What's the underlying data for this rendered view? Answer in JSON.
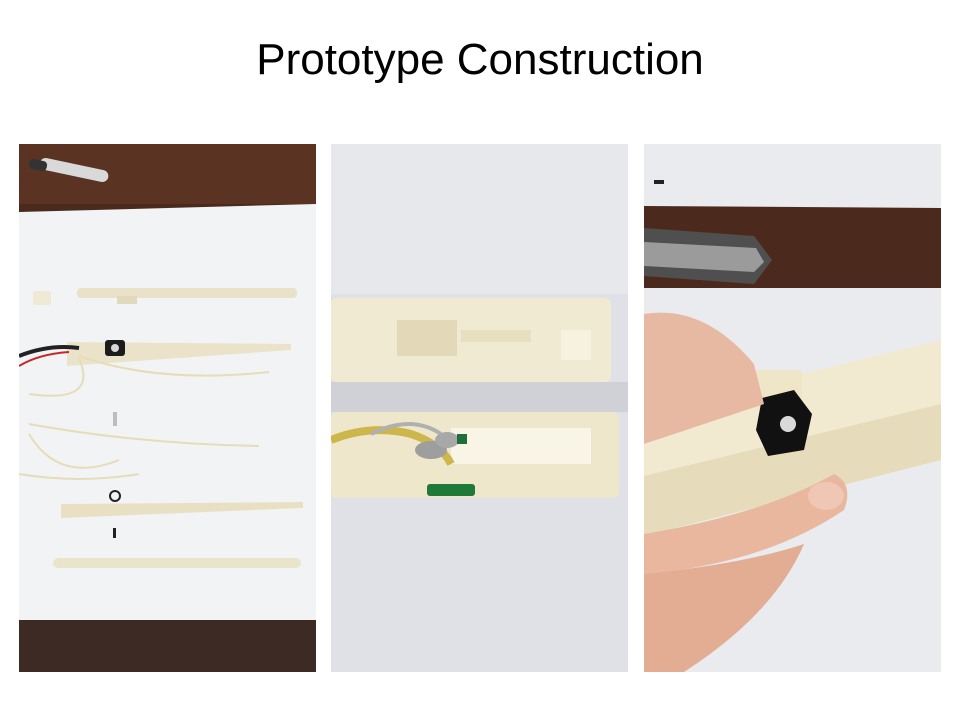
{
  "slide": {
    "title": "Prototype Construction"
  },
  "photos": [
    {
      "subject": "disassembled prototype parts laid out on white paper with wires and sensor"
    },
    {
      "subject": "close-up of two halves of the printed housing with wired sensor inside"
    },
    {
      "subject": "hand holding the assembled prototype showing the black sensor module"
    }
  ]
}
